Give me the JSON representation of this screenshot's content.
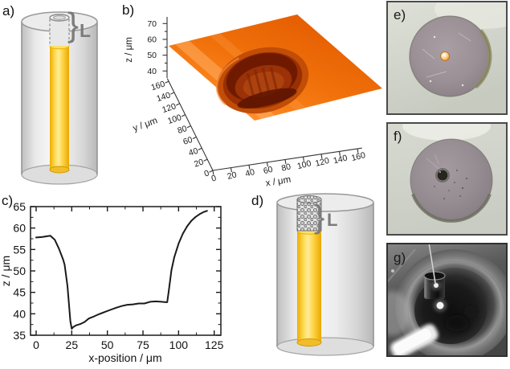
{
  "figure": {
    "background": "#ffffff",
    "panels": {
      "a": {
        "label": "a)",
        "type": "schematic",
        "brace": "}",
        "recess_label": "L",
        "description": "glass capillary with sealed gold wire and empty recess of depth L"
      },
      "b": {
        "label": "b)",
        "type": "3d-surface-plot"
      },
      "c": {
        "label": "c)",
        "type": "line-profile-plot"
      },
      "d": {
        "label": "d)",
        "type": "schematic",
        "brace": "}",
        "recess_label": "L",
        "description": "glass capillary with gold wire, recess filled with particles, depth L"
      },
      "e": {
        "label": "e)",
        "type": "photo",
        "description": "optical micrograph of polished electrode face with bright gold microdisc in centre"
      },
      "f": {
        "label": "f)",
        "type": "photo",
        "description": "optical micrograph of electrode face with dark recessed microcavity"
      },
      "g": {
        "label": "g)",
        "type": "photo",
        "description": "greyscale photo of capillary tip positioned over electrode inside cell"
      }
    },
    "colors": {
      "gold_wire": "#ffd94d",
      "glass_grey": "#dcdcdc",
      "surface_orange": "#f5730e",
      "crater_dark": "#6f1a00",
      "profile_line": "#1a1a1a",
      "annotation_grey": "#7c7c7c"
    }
  },
  "chart_data": [
    {
      "id": "panel-b",
      "type": "surface",
      "title": "",
      "xlabel": "x / μm",
      "ylabel": "y / μm",
      "zlabel": "z / μm",
      "x_ticks": [
        0,
        20,
        40,
        60,
        80,
        100,
        120,
        140,
        160
      ],
      "y_ticks": [
        0,
        20,
        40,
        60,
        80,
        100,
        120,
        140,
        160
      ],
      "z_ticks": [
        40,
        50,
        60,
        70
      ],
      "z_minor_ticks": [
        45,
        55,
        65
      ],
      "xlim": [
        0,
        165
      ],
      "ylim": [
        0,
        165
      ],
      "zlim": [
        36,
        74
      ],
      "legend": "none",
      "grid": false,
      "surface_summary": {
        "plateau_z_um": 58,
        "crater_min_z_um": 37,
        "crater_center_xy_um": [
          85,
          85
        ],
        "crater_diameter_um": 65,
        "colormap": "orange"
      }
    },
    {
      "id": "panel-c",
      "type": "line",
      "title": "",
      "xlabel": "x-position / μm",
      "ylabel": "z / μm",
      "x_ticks": [
        0,
        25,
        50,
        75,
        100,
        125
      ],
      "y_ticks": [
        35,
        40,
        45,
        50,
        55,
        60,
        65
      ],
      "x_minor_step": 12.5,
      "y_minor_step": 2.5,
      "xlim": [
        -4,
        130
      ],
      "ylim": [
        35,
        65
      ],
      "legend": "none",
      "grid": false,
      "series": [
        {
          "name": "height profile across recess",
          "color": "#1a1a1a",
          "points": [
            [
              0,
              57.8
            ],
            [
              4,
              57.9
            ],
            [
              8,
              58.1
            ],
            [
              10,
              58.2
            ],
            [
              13,
              57.3
            ],
            [
              16,
              55.2
            ],
            [
              19,
              52.6
            ],
            [
              20,
              51.4
            ],
            [
              22,
              46.5
            ],
            [
              24,
              38.3
            ],
            [
              25,
              36.5
            ],
            [
              26,
              36.9
            ],
            [
              28,
              37.3
            ],
            [
              31,
              37.6
            ],
            [
              34,
              38.1
            ],
            [
              37,
              38.9
            ],
            [
              40,
              39.3
            ],
            [
              44,
              39.9
            ],
            [
              48,
              40.4
            ],
            [
              52,
              40.9
            ],
            [
              56,
              41.4
            ],
            [
              60,
              41.8
            ],
            [
              64,
              42.1
            ],
            [
              68,
              42.2
            ],
            [
              72,
              42.4
            ],
            [
              76,
              42.4
            ],
            [
              80,
              42.8
            ],
            [
              84,
              42.9
            ],
            [
              88,
              42.8
            ],
            [
              91,
              42.7
            ],
            [
              92,
              42.7
            ],
            [
              93,
              45.0
            ],
            [
              95,
              50.2
            ],
            [
              97,
              53.2
            ],
            [
              100,
              56.4
            ],
            [
              103,
              58.7
            ],
            [
              106,
              60.4
            ],
            [
              109,
              61.7
            ],
            [
              112,
              62.6
            ],
            [
              115,
              63.3
            ],
            [
              118,
              63.8
            ],
            [
              120,
              64.0
            ]
          ]
        }
      ]
    }
  ]
}
